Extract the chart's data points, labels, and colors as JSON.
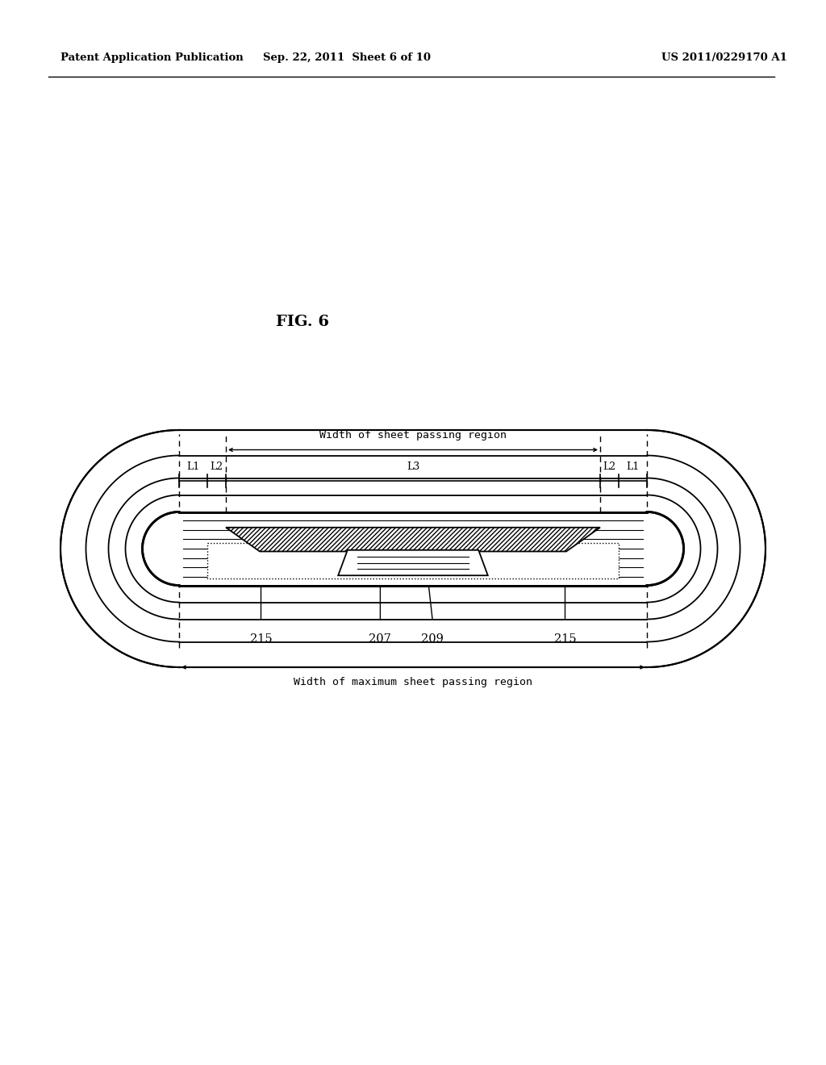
{
  "header_left": "Patent Application Publication",
  "header_mid": "Sep. 22, 2011  Sheet 6 of 10",
  "header_right": "US 2011/0229170 A1",
  "fig_label": "FIG. 6",
  "label_207": "207",
  "label_209": "209",
  "label_215_left": "215",
  "label_215_right": "215",
  "label_L1_left": "L1",
  "label_L1_right": "L1",
  "label_L2_left": "L2",
  "label_L2_right": "L2",
  "label_L3": "L3",
  "text_sheet_passing": "Width of sheet passing region",
  "text_max_sheet": "Width of maximum sheet passing region",
  "bg_color": "#ffffff",
  "line_color": "#000000"
}
